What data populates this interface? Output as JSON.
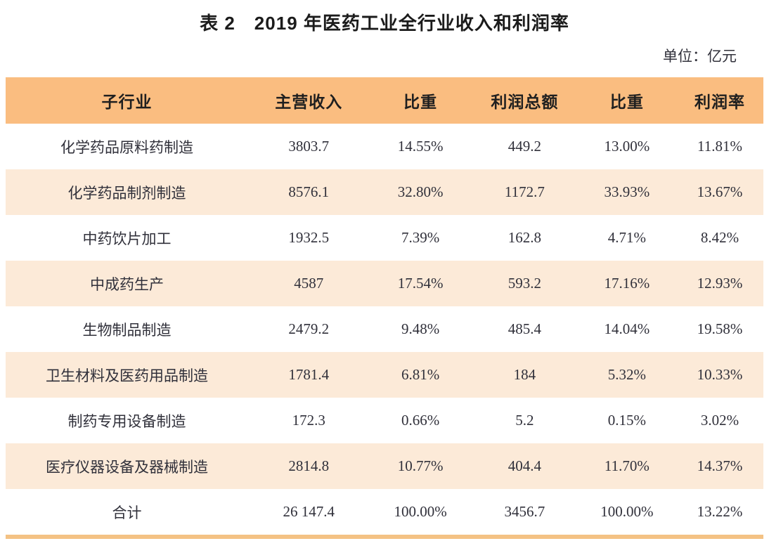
{
  "title": "表 2　2019 年医药工业全行业收入和利润率",
  "unit_label": "单位：亿元",
  "colors": {
    "header_bg": "#FABD80",
    "stripe_bg": "#FCEAD8",
    "bottom_bar": "#F4C284",
    "body_text": "#30303A",
    "header_text": "#1F1F1F"
  },
  "chart_data": {
    "type": "table",
    "title": "表 2　2019 年医药工业全行业收入和利润率",
    "unit": "亿元",
    "columns": [
      "子行业",
      "主营收入",
      "比重",
      "利润总额",
      "比重",
      "利润率"
    ],
    "rows": [
      [
        "化学药品原料药制造",
        "3803.7",
        "14.55%",
        "449.2",
        "13.00%",
        "11.81%"
      ],
      [
        "化学药品制剂制造",
        "8576.1",
        "32.80%",
        "1172.7",
        "33.93%",
        "13.67%"
      ],
      [
        "中药饮片加工",
        "1932.5",
        "7.39%",
        "162.8",
        "4.71%",
        "8.42%"
      ],
      [
        "中成药生产",
        "4587",
        "17.54%",
        "593.2",
        "17.16%",
        "12.93%"
      ],
      [
        "生物制品制造",
        "2479.2",
        "9.48%",
        "485.4",
        "14.04%",
        "19.58%"
      ],
      [
        "卫生材料及医药用品制造",
        "1781.4",
        "6.81%",
        "184",
        "5.32%",
        "10.33%"
      ],
      [
        "制药专用设备制造",
        "172.3",
        "0.66%",
        "5.2",
        "0.15%",
        "3.02%"
      ],
      [
        "医疗仪器设备及器械制造",
        "2814.8",
        "10.77%",
        "404.4",
        "11.70%",
        "14.37%"
      ],
      [
        "合计",
        "26 147.4",
        "100.00%",
        "3456.7",
        "100.00%",
        "13.22%"
      ]
    ]
  }
}
